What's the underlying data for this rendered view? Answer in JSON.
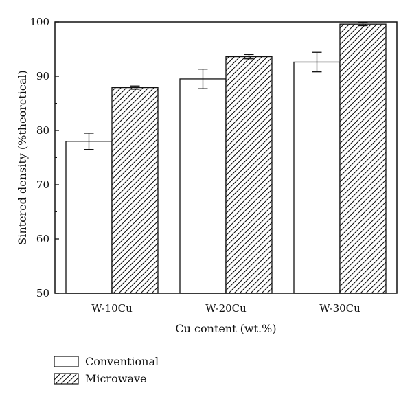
{
  "chart_data": {
    "type": "bar",
    "categories": [
      "W-10Cu",
      "W-20Cu",
      "W-30Cu"
    ],
    "series": [
      {
        "name": "Conventional",
        "values": [
          78.0,
          89.5,
          92.6
        ],
        "errors": [
          1.5,
          1.8,
          1.8
        ],
        "pattern": "plain"
      },
      {
        "name": "Microwave",
        "values": [
          87.9,
          93.6,
          99.6
        ],
        "errors": [
          0.3,
          0.4,
          0.3
        ],
        "pattern": "hatch"
      }
    ],
    "xlabel": "Cu content (wt.%)",
    "ylabel": "Sintered density (%theoretical)",
    "ylim": [
      50,
      100
    ],
    "yticks": [
      50,
      60,
      70,
      80,
      90,
      100
    ],
    "grid": false,
    "legend_position": "bottom-left"
  }
}
